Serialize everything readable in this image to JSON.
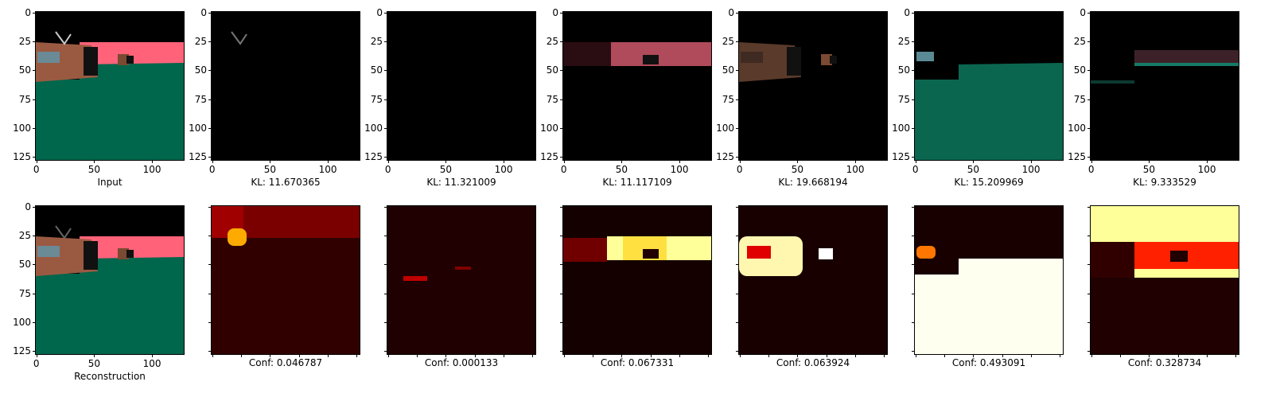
{
  "figure": {
    "top_row": [
      {
        "caption": "Input",
        "kind": "input"
      },
      {
        "caption": "KL: 11.670365",
        "kind": "dim_head"
      },
      {
        "caption": "KL: 11.321009",
        "kind": "black"
      },
      {
        "caption": "KL: 11.117109",
        "kind": "pink_strip"
      },
      {
        "caption": "KL: 19.668194",
        "kind": "tv_only"
      },
      {
        "caption": "KL: 15.209969",
        "kind": "green_floor"
      },
      {
        "caption": "KL: 9.333529",
        "kind": "dim_mix"
      }
    ],
    "bottom_row": [
      {
        "caption": "Reconstruction",
        "kind": "recon"
      },
      {
        "caption": "Conf: 0.046787",
        "kind": "heat1"
      },
      {
        "caption": "Conf: 0.000133",
        "kind": "heat2"
      },
      {
        "caption": "Conf: 0.067331",
        "kind": "heat3"
      },
      {
        "caption": "Conf: 0.063924",
        "kind": "heat4"
      },
      {
        "caption": "Conf: 0.493091",
        "kind": "heat5"
      },
      {
        "caption": "Conf: 0.328734",
        "kind": "heat6"
      }
    ],
    "y_ticks": [
      "0",
      "25",
      "50",
      "75",
      "100",
      "125"
    ],
    "x_ticks": [
      "0",
      "50",
      "100"
    ]
  },
  "colors": {
    "pink": "#ff6279",
    "green": "#00664c",
    "tv": "#9a5a42",
    "heat_dark": "#200000",
    "heat_red": "#aa0000",
    "heat_yellow": "#ffff99"
  }
}
